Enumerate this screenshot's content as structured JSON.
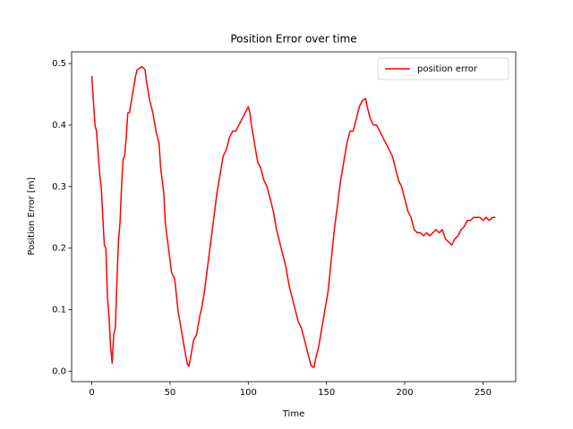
{
  "chart_data": {
    "type": "line",
    "title": "Position Error over time",
    "xlabel": "Time",
    "ylabel": "Position Error [m]",
    "x": [
      0,
      2,
      3,
      5,
      6,
      8,
      9,
      10,
      11,
      12,
      13,
      14,
      15,
      16,
      17,
      18,
      19,
      20,
      21,
      22,
      23,
      24,
      26,
      28,
      29,
      31,
      32,
      34,
      35,
      37,
      39,
      41,
      43,
      44,
      46,
      47,
      49,
      51,
      53,
      55,
      57,
      59,
      61,
      62,
      63,
      65,
      67,
      69,
      70,
      72,
      74,
      76,
      78,
      80,
      82,
      84,
      86,
      88,
      90,
      92,
      94,
      96,
      98,
      100,
      101,
      102,
      104,
      106,
      108,
      110,
      112,
      114,
      116,
      118,
      120,
      122,
      124,
      126,
      128,
      130,
      132,
      134,
      136,
      138,
      140,
      141,
      142,
      143,
      145,
      147,
      149,
      151,
      153,
      155,
      157,
      159,
      161,
      163,
      165,
      167,
      169,
      171,
      173,
      175,
      176,
      178,
      180,
      182,
      184,
      186,
      188,
      190,
      192,
      194,
      196,
      198,
      200,
      202,
      204,
      206,
      208,
      210,
      212,
      214,
      216,
      218,
      220,
      222,
      224,
      226,
      228,
      230,
      232,
      234,
      236,
      238,
      240,
      242,
      244,
      246,
      248,
      250,
      252,
      254,
      256,
      258
    ],
    "series": [
      {
        "name": "position error",
        "color": "#ff0000",
        "values": [
          0.48,
          0.4,
          0.39,
          0.32,
          0.3,
          0.205,
          0.2,
          0.12,
          0.09,
          0.04,
          0.013,
          0.06,
          0.07,
          0.14,
          0.21,
          0.24,
          0.3,
          0.345,
          0.35,
          0.38,
          0.42,
          0.42,
          0.45,
          0.48,
          0.49,
          0.493,
          0.495,
          0.49,
          0.47,
          0.44,
          0.42,
          0.39,
          0.37,
          0.33,
          0.29,
          0.24,
          0.2,
          0.16,
          0.15,
          0.1,
          0.07,
          0.04,
          0.012,
          0.008,
          0.02,
          0.05,
          0.06,
          0.09,
          0.1,
          0.13,
          0.17,
          0.21,
          0.25,
          0.29,
          0.32,
          0.35,
          0.36,
          0.38,
          0.39,
          0.39,
          0.4,
          0.41,
          0.42,
          0.43,
          0.42,
          0.4,
          0.37,
          0.34,
          0.33,
          0.31,
          0.3,
          0.28,
          0.26,
          0.23,
          0.21,
          0.19,
          0.17,
          0.14,
          0.12,
          0.1,
          0.08,
          0.07,
          0.05,
          0.03,
          0.01,
          0.007,
          0.006,
          0.02,
          0.04,
          0.07,
          0.1,
          0.13,
          0.18,
          0.23,
          0.27,
          0.31,
          0.34,
          0.37,
          0.39,
          0.39,
          0.41,
          0.43,
          0.44,
          0.443,
          0.43,
          0.41,
          0.4,
          0.4,
          0.39,
          0.38,
          0.37,
          0.36,
          0.35,
          0.33,
          0.31,
          0.3,
          0.28,
          0.26,
          0.25,
          0.23,
          0.225,
          0.225,
          0.22,
          0.225,
          0.22,
          0.225,
          0.23,
          0.225,
          0.23,
          0.215,
          0.21,
          0.205,
          0.215,
          0.22,
          0.23,
          0.235,
          0.245,
          0.245,
          0.25,
          0.25,
          0.25,
          0.245,
          0.25,
          0.245,
          0.25,
          0.25
        ]
      }
    ],
    "xlim": [
      -12.9,
      270.9
    ],
    "ylim": [
      -0.017,
      0.519
    ],
    "xticks": [
      0,
      50,
      100,
      150,
      200,
      250
    ],
    "yticks": [
      {
        "value": 0,
        "label": "0.0"
      },
      0.1,
      0.2,
      0.3,
      0.4,
      0.5
    ],
    "legend": "upper right",
    "grid": false
  }
}
